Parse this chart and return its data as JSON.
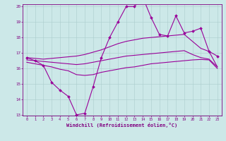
{
  "x": [
    0,
    1,
    2,
    3,
    4,
    5,
    6,
    7,
    8,
    9,
    10,
    11,
    12,
    13,
    14,
    15,
    16,
    17,
    18,
    19,
    20,
    21,
    22,
    23
  ],
  "line_zigzag": [
    16.7,
    16.5,
    16.2,
    15.1,
    14.6,
    14.2,
    13.0,
    13.1,
    14.8,
    16.7,
    18.0,
    19.0,
    20.0,
    20.0,
    20.6,
    19.3,
    18.2,
    18.1,
    19.4,
    18.3,
    18.4,
    18.6,
    17.1,
    16.8
  ],
  "line_upper": [
    16.7,
    16.65,
    16.6,
    16.65,
    16.7,
    16.75,
    16.8,
    16.9,
    17.05,
    17.2,
    17.4,
    17.6,
    17.75,
    17.85,
    17.95,
    18.0,
    18.05,
    18.1,
    18.15,
    18.2,
    17.75,
    17.3,
    17.1,
    16.1
  ],
  "line_mid": [
    16.55,
    16.5,
    16.45,
    16.4,
    16.35,
    16.3,
    16.25,
    16.3,
    16.4,
    16.5,
    16.6,
    16.7,
    16.8,
    16.85,
    16.9,
    16.95,
    17.0,
    17.05,
    17.1,
    17.15,
    16.9,
    16.7,
    16.6,
    16.1
  ],
  "line_lower": [
    16.4,
    16.3,
    16.2,
    16.1,
    15.95,
    15.85,
    15.6,
    15.55,
    15.6,
    15.75,
    15.85,
    15.95,
    16.05,
    16.1,
    16.2,
    16.3,
    16.35,
    16.4,
    16.45,
    16.5,
    16.55,
    16.58,
    16.55,
    16.0
  ],
  "ylim_min": 13,
  "ylim_max": 20,
  "xlim_min": 0,
  "xlim_max": 23,
  "yticks": [
    13,
    14,
    15,
    16,
    17,
    18,
    19,
    20
  ],
  "xticks": [
    0,
    1,
    2,
    3,
    4,
    5,
    6,
    7,
    8,
    9,
    10,
    11,
    12,
    13,
    14,
    15,
    16,
    17,
    18,
    19,
    20,
    21,
    22,
    23
  ],
  "xlabel": "Windchill (Refroidissement éolien,°C)",
  "line_color": "#990099",
  "bg_color": "#cce8e8",
  "grid_color": "#aacccc",
  "text_color": "#800080"
}
